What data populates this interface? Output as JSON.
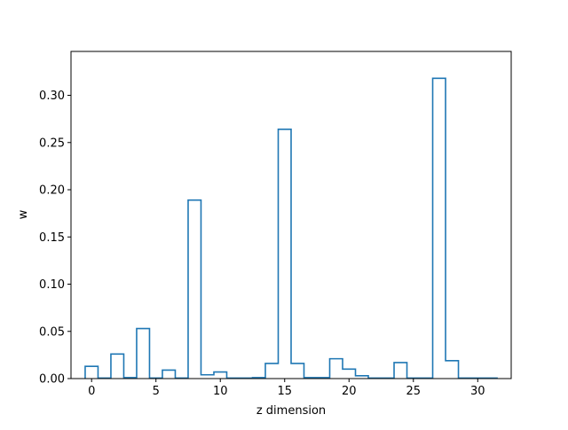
{
  "chart_data": {
    "type": "step-histogram",
    "xlabel": "z dimension",
    "ylabel": "w",
    "xlim": [
      -1.6,
      32.6
    ],
    "ylim": [
      0.0,
      0.3465
    ],
    "x_ticks": [
      0,
      5,
      10,
      15,
      20,
      25,
      30
    ],
    "y_ticks": [
      0.0,
      0.05,
      0.1,
      0.15,
      0.2,
      0.25,
      0.3
    ],
    "x_tick_labels": [
      "0",
      "5",
      "10",
      "15",
      "20",
      "25",
      "30"
    ],
    "y_tick_labels": [
      "0.00",
      "0.05",
      "0.10",
      "0.15",
      "0.20",
      "0.25",
      "0.30"
    ],
    "x": [
      0,
      1,
      2,
      3,
      4,
      5,
      6,
      7,
      8,
      9,
      10,
      11,
      12,
      13,
      14,
      15,
      16,
      17,
      18,
      19,
      20,
      21,
      22,
      23,
      24,
      25,
      26,
      27,
      28,
      29,
      30,
      31
    ],
    "values": [
      0.013,
      0.0005,
      0.026,
      0.001,
      0.053,
      0.0005,
      0.009,
      0.0005,
      0.189,
      0.004,
      0.007,
      0.0005,
      0.0005,
      0.001,
      0.016,
      0.264,
      0.016,
      0.001,
      0.001,
      0.021,
      0.01,
      0.003,
      0.0005,
      0.0005,
      0.017,
      0.0005,
      0.0005,
      0.318,
      0.019,
      0.0005,
      0.0005,
      0.0005
    ],
    "line_color": "#1f77b4",
    "grid": false
  }
}
